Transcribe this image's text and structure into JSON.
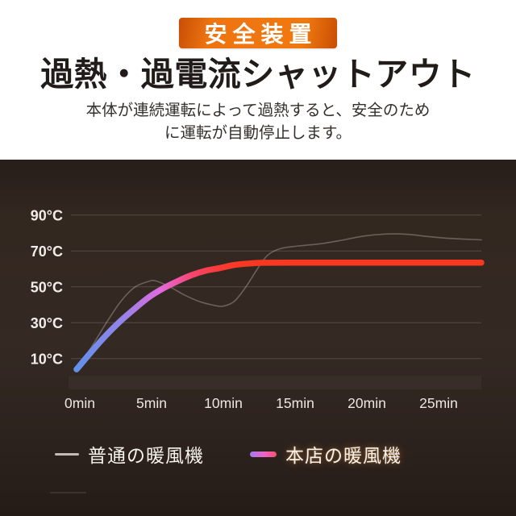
{
  "header": {
    "badge": "安全装置",
    "title": "過熱・過電流シャットアウト",
    "description_line1": "本体が連続運転によって過熱すると、安全のため",
    "description_line2": "に運転が自動停止します。"
  },
  "colors": {
    "badge_orange": "#ee7410",
    "panel_background": "#30261f",
    "grid_line": "rgba(255,250,244,0.17)",
    "axis_label": "#f2ece7",
    "plateau_red": "#f93822",
    "start_blue": "#5f90ea"
  },
  "chart_data": {
    "type": "line",
    "title": "",
    "xlabel": "",
    "ylabel": "",
    "x_unit": "min",
    "y_unit": "°C",
    "xlim": [
      0,
      25
    ],
    "ylim": [
      0,
      100
    ],
    "grid": "horizontal",
    "legend_position": "bottom",
    "x_ticks": [
      {
        "value": 0,
        "label": "0min"
      },
      {
        "value": 5,
        "label": "5min"
      },
      {
        "value": 10,
        "label": "10min"
      },
      {
        "value": 15,
        "label": "15min"
      },
      {
        "value": 20,
        "label": "20min"
      },
      {
        "value": 25,
        "label": "25min"
      }
    ],
    "y_ticks": [
      {
        "value": 90,
        "label": "90°C"
      },
      {
        "value": 70,
        "label": "70°C"
      },
      {
        "value": 50,
        "label": "50°C"
      },
      {
        "value": 30,
        "label": "30°C"
      },
      {
        "value": 10,
        "label": "10°C"
      }
    ],
    "series": [
      {
        "name": "普通の暖風機",
        "type": "line",
        "style": "thin-gray",
        "color": "rgba(235,228,222,0.30)",
        "width": 1.6,
        "points": [
          [
            0,
            5
          ],
          [
            1,
            16
          ],
          [
            2,
            29
          ],
          [
            3,
            41
          ],
          [
            4,
            49.5
          ],
          [
            5,
            53
          ],
          [
            5.5,
            53.3
          ],
          [
            6.5,
            50
          ],
          [
            7.5,
            45.5
          ],
          [
            8.5,
            42
          ],
          [
            9.5,
            39.8
          ],
          [
            10.2,
            39.2
          ],
          [
            11,
            42
          ],
          [
            11.8,
            50
          ],
          [
            12.6,
            60
          ],
          [
            13.3,
            67.5
          ],
          [
            14.2,
            71.3
          ],
          [
            15.5,
            72.8
          ],
          [
            17,
            74
          ],
          [
            18.5,
            76
          ],
          [
            20,
            78.3
          ],
          [
            21.5,
            79.4
          ],
          [
            23,
            79.3
          ],
          [
            24.5,
            78
          ],
          [
            26,
            77
          ],
          [
            28.2,
            76.2
          ]
        ]
      },
      {
        "name": "本店の暖風機",
        "type": "line",
        "style": "thick-gradient",
        "width": 7.5,
        "gradient": [
          {
            "offset": 0,
            "color": "#5f90ea"
          },
          {
            "offset": 0.28,
            "color": "#9185e9"
          },
          {
            "offset": 0.52,
            "color": "#e26ade"
          },
          {
            "offset": 0.71,
            "color": "#f8436b"
          },
          {
            "offset": 0.88,
            "color": "#fa3a33"
          },
          {
            "offset": 1,
            "color": "#f93822"
          }
        ],
        "points": [
          [
            0,
            4
          ],
          [
            1,
            13.5
          ],
          [
            2,
            22.5
          ],
          [
            3,
            30.5
          ],
          [
            4,
            37.5
          ],
          [
            5,
            44
          ],
          [
            6,
            49
          ],
          [
            7,
            53
          ],
          [
            8,
            56.5
          ],
          [
            9,
            59
          ],
          [
            10,
            60.5
          ],
          [
            11,
            62.2
          ],
          [
            12,
            63
          ],
          [
            13,
            63.4
          ],
          [
            15,
            63.5
          ],
          [
            20,
            63.5
          ],
          [
            25,
            63.5
          ],
          [
            28.2,
            63.5
          ]
        ]
      }
    ]
  }
}
